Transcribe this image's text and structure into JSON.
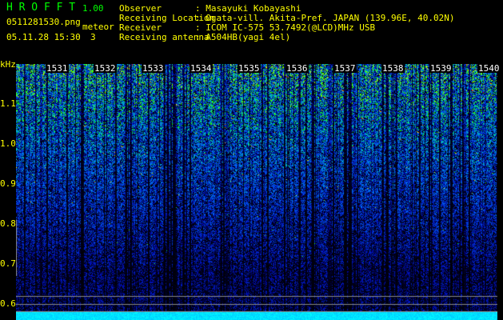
{
  "app": {
    "title": "H R O F F T",
    "version": "1.00"
  },
  "file": {
    "name": "0511281530.png",
    "datetime": "05.11.28 15:30"
  },
  "meteor": {
    "label": "meteor",
    "count": "3"
  },
  "info": [
    {
      "label": "Observer",
      "value": ": Masayuki Kobayashi"
    },
    {
      "label": "Receiving Location",
      "value": ": Ogata-vill. Akita-Pref. JAPAN (139.96E, 40.02N)"
    },
    {
      "label": "Receiver",
      "value": ": ICOM IC-575 53.7492(@LCD)MHz USB"
    },
    {
      "label": "Receiving antenna",
      "value": ": A504HB(yagi 4el)"
    }
  ],
  "y_axis": {
    "unit": "kHz",
    "ticks": [
      "1.1",
      "1.0",
      "0.9",
      "0.8",
      "0.7",
      "0.6"
    ]
  },
  "x_axis": {
    "ticks": [
      "1531",
      "1532",
      "1533",
      "1534",
      "1535",
      "1536",
      "1537",
      "1538",
      "1539",
      "1540"
    ]
  },
  "colors": {
    "text": "#ffff00",
    "title": "#00ff00",
    "baseline": "#00ffff"
  }
}
